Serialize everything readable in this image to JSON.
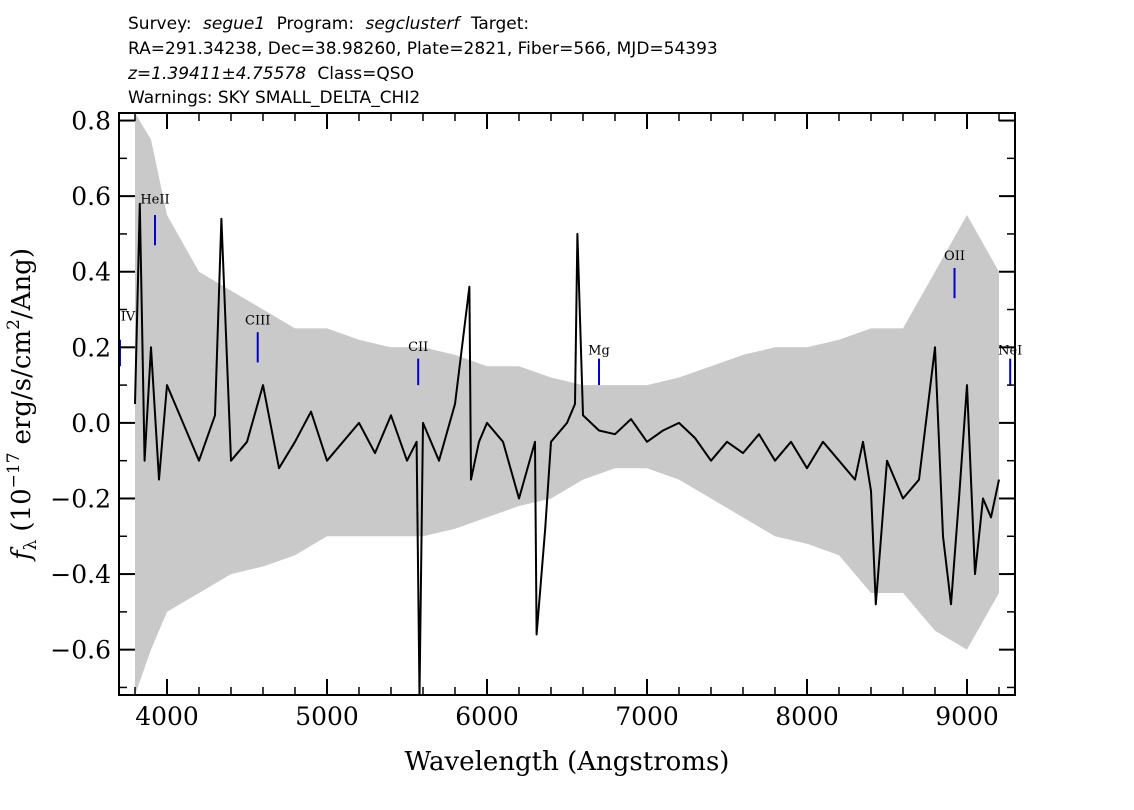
{
  "header": {
    "line1": {
      "survey_label": "Survey:",
      "survey_value": "segue1",
      "program_label": "Program:",
      "program_value": "segclusterf",
      "target_label": "Target:"
    },
    "line2": "RA=291.34238, Dec=38.98260, Plate=2821, Fiber=566, MJD=54393",
    "line3": {
      "redshift": "z=1.39411±4.75578",
      "class": "Class=QSO"
    },
    "line4": "Warnings: SKY SMALL_DELTA_CHI2"
  },
  "chart_data": {
    "type": "line",
    "xlabel": "Wavelength (Angstroms)",
    "ylabel_parts": {
      "f": "f",
      "sub": "λ",
      "open": "(10",
      "exp": "−17",
      "rest": "erg/s/cm",
      "sq": "2",
      "tail": "/Ang)"
    },
    "xlim": [
      3700,
      9300
    ],
    "ylim": [
      -0.72,
      0.82
    ],
    "x_ticks": [
      4000,
      5000,
      6000,
      7000,
      8000,
      9000
    ],
    "x_tick_labels": [
      "4000",
      "5000",
      "6000",
      "7000",
      "8000",
      "9000"
    ],
    "y_ticks": [
      -0.6,
      -0.4,
      -0.2,
      0.0,
      0.2,
      0.4,
      0.6,
      0.8
    ],
    "y_tick_labels": [
      "−0.6",
      "−0.4",
      "−0.2",
      "0.0",
      "0.2",
      "0.4",
      "0.6",
      "0.8"
    ],
    "grid": false,
    "series": [
      {
        "role": "flux",
        "color": "#000000",
        "x": [
          3800,
          3830,
          3860,
          3900,
          3950,
          4000,
          4100,
          4200,
          4300,
          4340,
          4400,
          4500,
          4600,
          4700,
          4800,
          4900,
          5000,
          5100,
          5200,
          5300,
          5400,
          5500,
          5560,
          5578,
          5600,
          5700,
          5800,
          5890,
          5900,
          5950,
          6000,
          6100,
          6200,
          6300,
          6310,
          6364,
          6400,
          6500,
          6550,
          6565,
          6600,
          6700,
          6800,
          6900,
          7000,
          7100,
          7200,
          7300,
          7400,
          7500,
          7600,
          7700,
          7800,
          7900,
          8000,
          8100,
          8200,
          8300,
          8350,
          8400,
          8430,
          8500,
          8600,
          8700,
          8800,
          8850,
          8900,
          8950,
          9000,
          9050,
          9100,
          9150,
          9200
        ],
        "y": [
          0.05,
          0.58,
          -0.1,
          0.2,
          -0.15,
          0.1,
          0.0,
          -0.1,
          0.02,
          0.54,
          -0.1,
          -0.05,
          0.1,
          -0.12,
          -0.05,
          0.03,
          -0.1,
          -0.05,
          0.0,
          -0.08,
          0.02,
          -0.1,
          -0.05,
          -0.72,
          0.0,
          -0.1,
          0.05,
          0.36,
          -0.15,
          -0.05,
          0.0,
          -0.05,
          -0.2,
          -0.05,
          -0.56,
          -0.28,
          -0.05,
          0.0,
          0.05,
          0.5,
          0.02,
          -0.02,
          -0.03,
          0.01,
          -0.05,
          -0.02,
          0.0,
          -0.04,
          -0.1,
          -0.05,
          -0.08,
          -0.03,
          -0.1,
          -0.05,
          -0.12,
          -0.05,
          -0.1,
          -0.15,
          -0.05,
          -0.18,
          -0.48,
          -0.1,
          -0.2,
          -0.15,
          0.2,
          -0.3,
          -0.48,
          -0.2,
          0.1,
          -0.4,
          -0.2,
          -0.25,
          -0.15
        ]
      },
      {
        "role": "error-envelope",
        "color": "#c0c0c0",
        "x": [
          3800,
          3900,
          4000,
          4200,
          4400,
          4600,
          4800,
          5000,
          5200,
          5400,
          5600,
          5800,
          6000,
          6200,
          6400,
          6600,
          6800,
          7000,
          7200,
          7400,
          7600,
          7800,
          8000,
          8200,
          8400,
          8600,
          8800,
          9000,
          9200
        ],
        "y_upper": [
          0.82,
          0.75,
          0.55,
          0.4,
          0.35,
          0.3,
          0.25,
          0.25,
          0.22,
          0.2,
          0.2,
          0.18,
          0.15,
          0.15,
          0.12,
          0.1,
          0.1,
          0.1,
          0.12,
          0.15,
          0.18,
          0.2,
          0.2,
          0.22,
          0.25,
          0.25,
          0.4,
          0.55,
          0.4
        ],
        "y_lower": [
          -0.72,
          -0.6,
          -0.5,
          -0.45,
          -0.4,
          -0.38,
          -0.35,
          -0.3,
          -0.3,
          -0.3,
          -0.3,
          -0.28,
          -0.25,
          -0.22,
          -0.2,
          -0.15,
          -0.12,
          -0.12,
          -0.15,
          -0.2,
          -0.25,
          -0.3,
          -0.32,
          -0.35,
          -0.45,
          -0.45,
          -0.55,
          -0.6,
          -0.45
        ]
      }
    ],
    "annotations": [
      {
        "label": "IV",
        "wavelength": 3706,
        "label_y": 0.26,
        "tick_top": 0.22,
        "tick_bottom": 0.15,
        "color": "#0000cc"
      },
      {
        "label": "HeII",
        "wavelength": 3925,
        "label_y": 0.57,
        "tick_top": 0.55,
        "tick_bottom": 0.47,
        "color": "#0000cc"
      },
      {
        "label": "CIII",
        "wavelength": 4567,
        "label_y": 0.25,
        "tick_top": 0.24,
        "tick_bottom": 0.16,
        "color": "#0000cc"
      },
      {
        "label": "CII",
        "wavelength": 5570,
        "label_y": 0.18,
        "tick_top": 0.17,
        "tick_bottom": 0.1,
        "color": "#0000cc"
      },
      {
        "label": "Mg",
        "wavelength": 6700,
        "label_y": 0.17,
        "tick_top": 0.17,
        "tick_bottom": 0.1,
        "color": "#0000cc"
      },
      {
        "label": "OII",
        "wavelength": 8922,
        "label_y": 0.42,
        "tick_top": 0.41,
        "tick_bottom": 0.33,
        "color": "#0000cc"
      },
      {
        "label": "NeI",
        "wavelength": 9270,
        "label_y": 0.17,
        "tick_top": 0.17,
        "tick_bottom": 0.1,
        "color": "#0000cc"
      }
    ]
  }
}
